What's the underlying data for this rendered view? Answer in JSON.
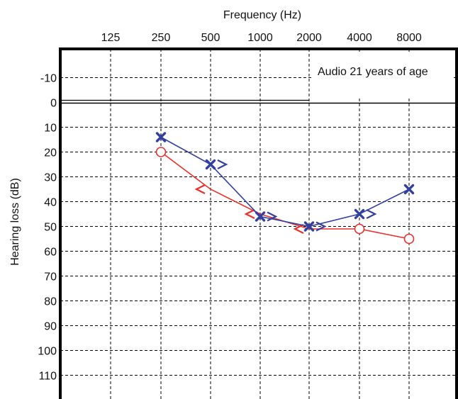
{
  "chart_data": {
    "type": "line",
    "title": "",
    "xlabel": "Frequency (Hz)",
    "ylabel": "Hearing loss (dB)",
    "annotation": "Audio 21 years of age",
    "categories": [
      "125",
      "250",
      "500",
      "1000",
      "2000",
      "4000",
      "8000"
    ],
    "y_ticks": [
      "-10",
      "0",
      "10",
      "20",
      "30",
      "40",
      "50",
      "60",
      "70",
      "80",
      "90",
      "100",
      "110"
    ],
    "ylim": [
      -20,
      120
    ],
    "y_inverted": true,
    "grid": true,
    "series": [
      {
        "color": "#e8312b",
        "marker": "circle",
        "line_points": [
          {
            "x": "250",
            "y": 20
          },
          {
            "x": "500",
            "y": 35
          },
          {
            "x": "1000",
            "y": 45
          },
          {
            "x": "2000",
            "y": 51
          },
          {
            "x": "4000",
            "y": 51
          },
          {
            "x": "8000",
            "y": 55
          }
        ],
        "markers": [
          {
            "x": "250",
            "y": 20,
            "symbol": "○"
          },
          {
            "x": "4000",
            "y": 51,
            "symbol": "○"
          },
          {
            "x": "8000",
            "y": 55,
            "symbol": "○"
          }
        ],
        "bone_markers": [
          {
            "x": "500",
            "y": 35,
            "symbol": "<"
          },
          {
            "x": "1000",
            "y": 45,
            "symbol": "<"
          },
          {
            "x": "2000",
            "y": 51,
            "symbol": "<"
          }
        ]
      },
      {
        "color": "#3340a0",
        "marker": "x",
        "line_points": [
          {
            "x": "250",
            "y": 14
          },
          {
            "x": "500",
            "y": 25
          },
          {
            "x": "1000",
            "y": 46
          },
          {
            "x": "2000",
            "y": 50
          },
          {
            "x": "4000",
            "y": 45
          },
          {
            "x": "8000",
            "y": 35
          }
        ],
        "markers": [
          {
            "x": "250",
            "y": 14,
            "symbol": "X"
          },
          {
            "x": "500",
            "y": 25,
            "symbol": "X"
          },
          {
            "x": "1000",
            "y": 46,
            "symbol": "X"
          },
          {
            "x": "2000",
            "y": 50,
            "symbol": "X"
          },
          {
            "x": "4000",
            "y": 45,
            "symbol": "X"
          },
          {
            "x": "8000",
            "y": 35,
            "symbol": "X"
          }
        ],
        "bone_markers": [
          {
            "x": "500",
            "y": 25,
            "symbol": ">"
          },
          {
            "x": "1000",
            "y": 46,
            "symbol": ">"
          },
          {
            "x": "2000",
            "y": 50,
            "symbol": ">"
          },
          {
            "x": "4000",
            "y": 45,
            "symbol": ">"
          }
        ]
      }
    ]
  }
}
